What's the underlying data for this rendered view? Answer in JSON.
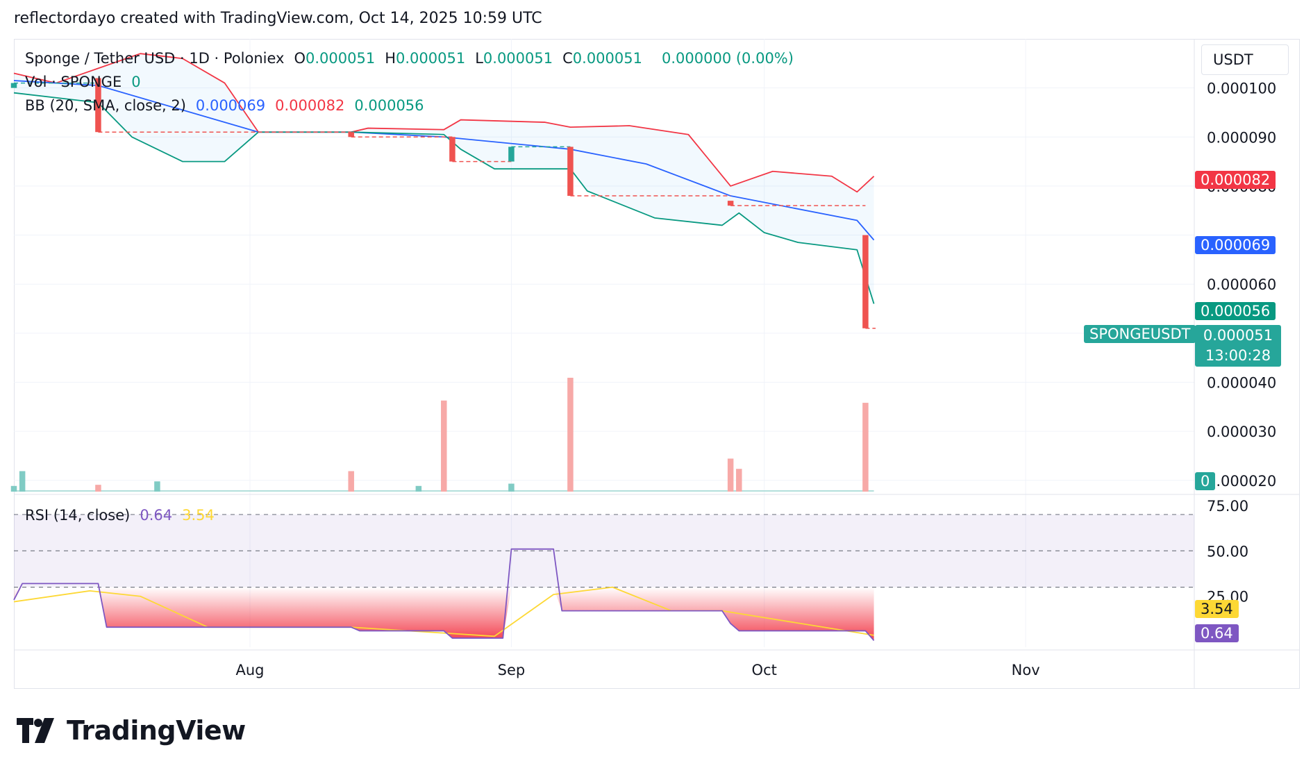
{
  "header": {
    "attribution": "reflectordayo created with TradingView.com, Oct 14, 2025 10:59 UTC"
  },
  "legend": {
    "symbol": "Sponge / Tether USD · 1D · Poloniex",
    "ohlc": [
      {
        "key": "O",
        "value": "0.000051"
      },
      {
        "key": "H",
        "value": "0.000051"
      },
      {
        "key": "L",
        "value": "0.000051"
      },
      {
        "key": "C",
        "value": "0.000051"
      }
    ],
    "change": "0.000000 (0.00%)",
    "vol_label": "Vol · SPONGE",
    "vol_value": "0",
    "bb_label": "BB (20, SMA, close, 2)",
    "bb_basis": "0.000069",
    "bb_upper": "0.000082",
    "bb_lower": "0.000056",
    "rsi_label": "RSI (14, close)",
    "rsi_value": "0.64",
    "rsi_ma": "3.54"
  },
  "price_axis": {
    "currency": "USDT",
    "ticks": [
      "0.000100",
      "0.000090",
      "0.000080",
      "0.000060",
      "0.000040",
      "0.000030",
      "0.000020"
    ]
  },
  "tags": {
    "bb_upper": "0.000082",
    "bb_basis": "0.000069",
    "bb_lower": "0.000056",
    "symbol_tag": "SPONGEUSDT",
    "last_price": "0.000051",
    "countdown": "13:00:28",
    "volume": "0",
    "rsi_ma": "3.54",
    "rsi": "0.64"
  },
  "rsi_axis": {
    "ticks": [
      "75.00",
      "50.00",
      "25.00"
    ]
  },
  "time_axis": {
    "ticks": [
      "Aug",
      "Sep",
      "Oct",
      "Nov"
    ]
  },
  "brand": {
    "name": "TradingView"
  },
  "colors": {
    "up": "#26a69a",
    "down": "#ef5350",
    "bb_upper": "#f23645",
    "bb_basis": "#2962ff",
    "bb_lower": "#089981",
    "rsi": "#7e57c2",
    "rsi_ma": "#fdd835"
  },
  "chart_data": {
    "type": "line",
    "title": "Sponge / Tether USD · 1D · Poloniex",
    "xlabel": "",
    "ylabel": "USDT",
    "x_range": [
      "2025-07-04",
      "2025-11-21"
    ],
    "ylim": [
      1.77e-05,
      0.00011
    ],
    "last_close": 5.1e-05,
    "bb_upper": [
      [
        "2025-07-04",
        0.000103
      ],
      [
        "2025-07-09",
        0.000101
      ],
      [
        "2025-07-14",
        0.000104
      ],
      [
        "2025-07-19",
        0.000107
      ],
      [
        "2025-07-24",
        0.000106
      ],
      [
        "2025-07-29",
        0.000101
      ],
      [
        "2025-08-02",
        9.1e-05
      ],
      [
        "2025-08-13",
        9.1e-05
      ],
      [
        "2025-08-15",
        9.18e-05
      ],
      [
        "2025-08-24",
        9.15e-05
      ],
      [
        "2025-08-26",
        9.35e-05
      ],
      [
        "2025-09-05",
        9.3e-05
      ],
      [
        "2025-09-08",
        9.2e-05
      ],
      [
        "2025-09-15",
        9.23e-05
      ],
      [
        "2025-09-22",
        9.05e-05
      ],
      [
        "2025-09-27",
        8e-05
      ],
      [
        "2025-10-02",
        8.3e-05
      ],
      [
        "2025-10-09",
        8.2e-05
      ],
      [
        "2025-10-12",
        7.88e-05
      ],
      [
        "2025-10-14",
        8.2e-05
      ]
    ],
    "bb_basis": [
      [
        "2025-07-04",
        0.0001015
      ],
      [
        "2025-07-14",
        0.0001005
      ],
      [
        "2025-08-02",
        9.1e-05
      ],
      [
        "2025-08-13",
        9.1e-05
      ],
      [
        "2025-08-24",
        9e-05
      ],
      [
        "2025-09-08",
        8.75e-05
      ],
      [
        "2025-09-17",
        8.45e-05
      ],
      [
        "2025-09-27",
        7.8e-05
      ],
      [
        "2025-10-12",
        7.3e-05
      ],
      [
        "2025-10-14",
        6.9e-05
      ]
    ],
    "bb_lower": [
      [
        "2025-07-04",
        9.9e-05
      ],
      [
        "2025-07-14",
        9.7e-05
      ],
      [
        "2025-07-18",
        9e-05
      ],
      [
        "2025-07-24",
        8.5e-05
      ],
      [
        "2025-07-29",
        8.5e-05
      ],
      [
        "2025-08-02",
        9.1e-05
      ],
      [
        "2025-08-13",
        9.1e-05
      ],
      [
        "2025-08-24",
        9.05e-05
      ],
      [
        "2025-08-26",
        8.75e-05
      ],
      [
        "2025-08-30",
        8.35e-05
      ],
      [
        "2025-09-08",
        8.35e-05
      ],
      [
        "2025-09-10",
        7.9e-05
      ],
      [
        "2025-09-18",
        7.35e-05
      ],
      [
        "2025-09-26",
        7.2e-05
      ],
      [
        "2025-09-28",
        7.45e-05
      ],
      [
        "2025-10-01",
        7.05e-05
      ],
      [
        "2025-10-05",
        6.85e-05
      ],
      [
        "2025-10-12",
        6.7e-05
      ],
      [
        "2025-10-14",
        5.6e-05
      ]
    ],
    "candles": [
      {
        "date": "2025-07-04",
        "open": 0.0001,
        "close": 0.000101,
        "dir": "up"
      },
      {
        "date": "2025-07-14",
        "open": 0.000102,
        "close": 9.1e-05,
        "dir": "down"
      },
      {
        "date": "2025-08-13",
        "open": 9.1e-05,
        "close": 9e-05,
        "dir": "down"
      },
      {
        "date": "2025-08-25",
        "open": 9e-05,
        "close": 8.5e-05,
        "dir": "down"
      },
      {
        "date": "2025-09-01",
        "open": 8.5e-05,
        "close": 8.8e-05,
        "dir": "up"
      },
      {
        "date": "2025-09-08",
        "open": 8.8e-05,
        "close": 7.8e-05,
        "dir": "down"
      },
      {
        "date": "2025-09-27",
        "open": 7.7e-05,
        "close": 7.6e-05,
        "dir": "down"
      },
      {
        "date": "2025-10-13",
        "open": 7e-05,
        "close": 5.1e-05,
        "dir": "down"
      }
    ],
    "volume_bars": [
      {
        "date": "2025-07-04",
        "rel": 0.05,
        "dir": "up"
      },
      {
        "date": "2025-07-05",
        "rel": 0.18,
        "dir": "up"
      },
      {
        "date": "2025-07-14",
        "rel": 0.06,
        "dir": "down"
      },
      {
        "date": "2025-07-21",
        "rel": 0.09,
        "dir": "up"
      },
      {
        "date": "2025-08-13",
        "rel": 0.18,
        "dir": "down"
      },
      {
        "date": "2025-08-21",
        "rel": 0.05,
        "dir": "up"
      },
      {
        "date": "2025-08-24",
        "rel": 0.8,
        "dir": "down"
      },
      {
        "date": "2025-09-01",
        "rel": 0.07,
        "dir": "up"
      },
      {
        "date": "2025-09-08",
        "rel": 1.0,
        "dir": "down"
      },
      {
        "date": "2025-09-27",
        "rel": 0.29,
        "dir": "down"
      },
      {
        "date": "2025-09-28",
        "rel": 0.2,
        "dir": "down"
      },
      {
        "date": "2025-10-13",
        "rel": 0.78,
        "dir": "down"
      }
    ],
    "rsi": [
      [
        "2025-07-04",
        23
      ],
      [
        "2025-07-05",
        32
      ],
      [
        "2025-07-14",
        32
      ],
      [
        "2025-07-15",
        8
      ],
      [
        "2025-08-13",
        8
      ],
      [
        "2025-08-14",
        6
      ],
      [
        "2025-08-24",
        6
      ],
      [
        "2025-08-25",
        2
      ],
      [
        "2025-08-31",
        2
      ],
      [
        "2025-09-01",
        51
      ],
      [
        "2025-09-06",
        51
      ],
      [
        "2025-09-07",
        17
      ],
      [
        "2025-09-26",
        17
      ],
      [
        "2025-09-27",
        10
      ],
      [
        "2025-09-28",
        6
      ],
      [
        "2025-10-13",
        6
      ],
      [
        "2025-10-14",
        0.64
      ]
    ],
    "rsi_ma": [
      [
        "2025-07-04",
        22
      ],
      [
        "2025-07-13",
        28
      ],
      [
        "2025-07-19",
        25
      ],
      [
        "2025-07-27",
        8
      ],
      [
        "2025-08-13",
        8
      ],
      [
        "2025-08-30",
        3
      ],
      [
        "2025-09-06",
        26
      ],
      [
        "2025-09-13",
        30
      ],
      [
        "2025-09-20",
        17
      ],
      [
        "2025-09-26",
        17
      ],
      [
        "2025-10-14",
        3.54
      ]
    ],
    "rsi_ylim": [
      -3,
      78
    ]
  }
}
